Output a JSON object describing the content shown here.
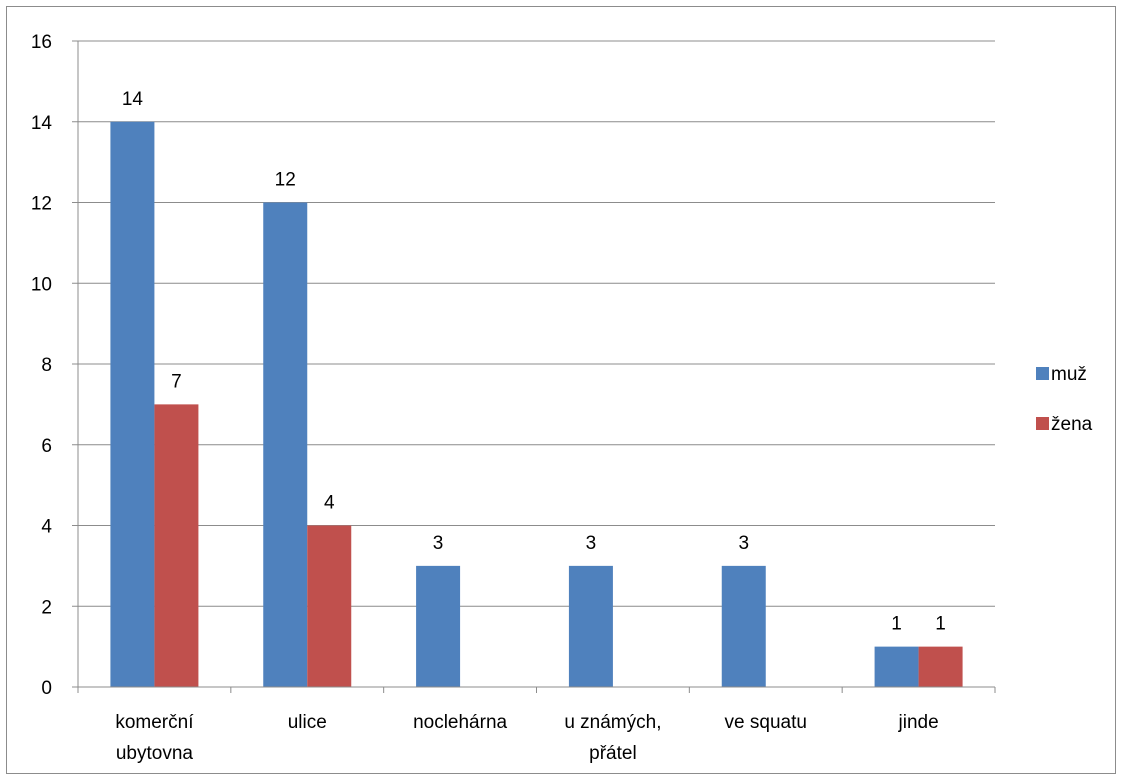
{
  "chart_data": {
    "type": "bar",
    "title": "",
    "xlabel": "",
    "ylabel": "",
    "ylim": [
      0,
      16
    ],
    "yticks": [
      0,
      2,
      4,
      6,
      8,
      10,
      12,
      14,
      16
    ],
    "grid": true,
    "legend_position": "right",
    "categories": [
      [
        "komerční",
        "ubytovna"
      ],
      [
        "ulice"
      ],
      [
        "noclehárna"
      ],
      [
        "u známých,",
        "přátel"
      ],
      [
        "ve squatu"
      ],
      [
        "jinde"
      ]
    ],
    "series": [
      {
        "name": "muž",
        "color": "#4f81bd",
        "values": [
          14,
          12,
          3,
          3,
          3,
          1
        ]
      },
      {
        "name": "žena",
        "color": "#c0504d",
        "values": [
          7,
          4,
          null,
          null,
          null,
          1
        ]
      }
    ]
  }
}
